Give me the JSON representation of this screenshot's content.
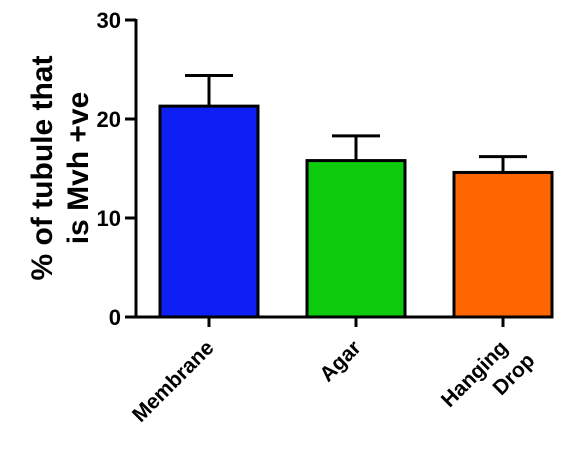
{
  "chart_data": {
    "type": "bar",
    "ylabel": "% of tubule that is Mvh +ve",
    "ylabel_lines": [
      "% of tubule that",
      "is Mvh +ve"
    ],
    "ylim": [
      0,
      30
    ],
    "yticks": [
      0,
      10,
      20,
      30
    ],
    "categories": [
      "Membrane",
      "Agar",
      "Hanging Drop"
    ],
    "category_lines": [
      [
        "Membrane"
      ],
      [
        "Agar"
      ],
      [
        "Hanging",
        "Drop"
      ]
    ],
    "values": [
      21.3,
      15.8,
      14.6
    ],
    "error_upper": [
      3.1,
      2.5,
      1.6
    ],
    "colors": [
      "#0d1ff5",
      "#0dcc0d",
      "#ff6600"
    ],
    "grid": false,
    "legend": "none"
  }
}
